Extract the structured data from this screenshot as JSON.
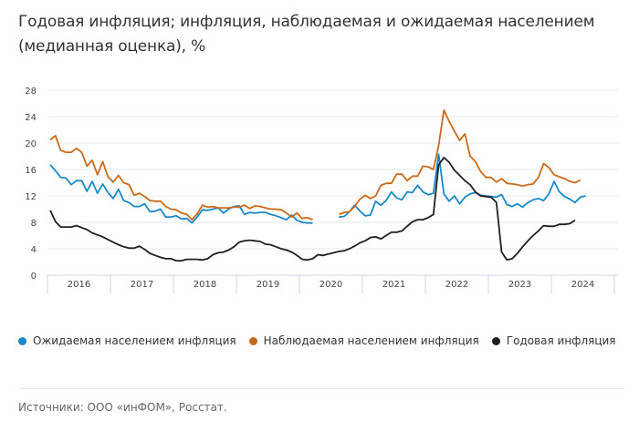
{
  "title": "Годовая инфляция; инфляция, наблюдаемая и ожидаемая населением (медианная оценка), %",
  "source": "Источники: ООО «инФОМ», Росстат.",
  "chart_data": {
    "type": "line",
    "title": "Годовая инфляция; инфляция, наблюдаемая и ожидаемая населением (медианная оценка), %",
    "frequency": "monthly",
    "x_tick_labels": [
      "2016",
      "2017",
      "2018",
      "2019",
      "2020",
      "2021",
      "2022",
      "2023",
      "2024"
    ],
    "y_ticks": [
      0,
      4,
      8,
      12,
      16,
      20,
      24,
      28
    ],
    "ylim": [
      0,
      28
    ],
    "grid": "horizontal",
    "legend_placement": "bottom-left",
    "series": [
      {
        "name": "Ожидаемая населением инфляция",
        "color": "#1a8ac6",
        "values": {
          "2016": [
            16.7,
            15.8,
            14.8,
            14.7,
            13.7,
            14.3,
            14.3,
            12.7,
            14.2,
            12.4,
            13.8,
            12.5
          ],
          "2017": [
            11.6,
            13.0,
            11.3,
            11.0,
            10.4,
            10.4,
            10.8,
            9.6,
            9.7,
            10.0,
            8.8,
            8.8
          ],
          "2018": [
            9.0,
            8.5,
            8.6,
            7.9,
            8.8,
            9.9,
            9.8,
            10.0,
            10.2,
            9.4,
            10.0,
            10.4
          ],
          "2019": [
            10.5,
            9.2,
            9.5,
            9.4,
            9.5,
            9.5,
            9.2,
            9.0,
            8.7,
            8.4,
            9.1,
            8.3
          ],
          "2020": [
            8.0,
            7.9,
            7.9,
            null,
            null,
            null,
            null,
            8.8,
            8.9,
            9.6,
            10.6,
            9.7
          ],
          "2021": [
            9.0,
            9.1,
            11.2,
            10.6,
            11.3,
            12.6,
            11.7,
            11.4,
            12.6,
            12.5,
            13.6,
            12.6
          ],
          "2022": [
            12.2,
            12.4,
            18.3,
            12.3,
            11.2,
            12.0,
            10.8,
            11.8,
            12.3,
            12.5,
            12.1,
            12.0
          ],
          "2023": [
            11.9,
            11.8,
            12.2,
            10.7,
            10.4,
            10.8,
            10.3,
            11.0,
            11.4,
            11.6,
            11.3,
            12.3
          ],
          "2024": [
            14.2,
            12.6,
            11.9,
            11.5,
            11.0,
            11.8,
            12.0
          ]
        }
      },
      {
        "name": "Наблюдаемая населением инфляция",
        "color": "#c96a1a",
        "values": {
          "2016": [
            20.5,
            21.1,
            18.9,
            18.6,
            18.6,
            19.2,
            18.6,
            16.5,
            17.4,
            15.2,
            17.2,
            14.9
          ],
          "2017": [
            14.1,
            15.1,
            14.0,
            13.7,
            12.1,
            12.4,
            11.9,
            11.3,
            11.2,
            11.2,
            10.4,
            10.0
          ],
          "2018": [
            9.9,
            9.4,
            9.2,
            8.4,
            9.3,
            10.6,
            10.3,
            10.4,
            10.2,
            10.2,
            10.2,
            10.3
          ],
          "2019": [
            10.3,
            10.6,
            10.1,
            10.5,
            10.4,
            10.2,
            10.0,
            10.0,
            9.9,
            9.4,
            8.8,
            9.4
          ],
          "2020": [
            8.6,
            8.7,
            8.4,
            null,
            null,
            null,
            null,
            9.2,
            9.5,
            9.6,
            10.4,
            11.5
          ],
          "2021": [
            12.1,
            11.6,
            12.0,
            13.6,
            13.9,
            13.9,
            15.3,
            15.3,
            14.3,
            15.0,
            15.0,
            16.5
          ],
          "2022": [
            16.4,
            16.0,
            19.6,
            25.0,
            23.3,
            21.8,
            20.4,
            21.4,
            18.0,
            17.2,
            15.7,
            14.8
          ],
          "2023": [
            14.8,
            14.1,
            14.6,
            13.9,
            13.8,
            13.7,
            13.5,
            13.7,
            13.8,
            14.8,
            16.9,
            16.3
          ],
          "2024": [
            15.2,
            14.9,
            14.6,
            14.2,
            14.0,
            14.4
          ]
        }
      },
      {
        "name": "Годовая инфляция",
        "color": "#1f2023",
        "values": {
          "2016": [
            9.8,
            8.1,
            7.3,
            7.3,
            7.3,
            7.5,
            7.2,
            6.9,
            6.4,
            6.1,
            5.8,
            5.4
          ],
          "2017": [
            5.0,
            4.6,
            4.3,
            4.1,
            4.1,
            4.4,
            3.9,
            3.3,
            3.0,
            2.7,
            2.5,
            2.5
          ],
          "2018": [
            2.2,
            2.2,
            2.4,
            2.4,
            2.4,
            2.3,
            2.5,
            3.1,
            3.4,
            3.5,
            3.8,
            4.3
          ],
          "2019": [
            5.0,
            5.2,
            5.3,
            5.2,
            5.1,
            4.7,
            4.6,
            4.3,
            4.0,
            3.8,
            3.5,
            3.0
          ],
          "2020": [
            2.4,
            2.3,
            2.5,
            3.1,
            3.0,
            3.2,
            3.4,
            3.6,
            3.7,
            4.0,
            4.4,
            4.9
          ],
          "2021": [
            5.2,
            5.7,
            5.8,
            5.5,
            6.0,
            6.5,
            6.5,
            6.7,
            7.4,
            8.1,
            8.4,
            8.4
          ],
          "2022": [
            8.7,
            9.2,
            16.7,
            17.8,
            17.1,
            15.9,
            15.1,
            14.3,
            13.7,
            12.6,
            12.0,
            11.9
          ],
          "2023": [
            11.8,
            11.0,
            3.5,
            2.3,
            2.5,
            3.3,
            4.3,
            5.2,
            6.0,
            6.7,
            7.5,
            7.4
          ],
          "2024": [
            7.4,
            7.7,
            7.7,
            7.8,
            8.3
          ]
        }
      }
    ]
  }
}
